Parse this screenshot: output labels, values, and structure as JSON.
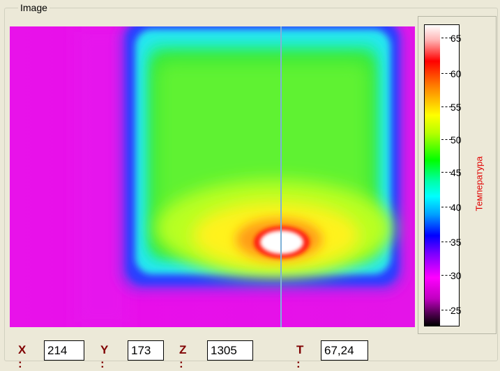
{
  "group": {
    "title": "Image"
  },
  "image": {
    "name": "thermal-image",
    "cursor_column_color": "#7FB2D8"
  },
  "colorbar": {
    "ticks": [
      "65",
      "60",
      "55",
      "50",
      "45",
      "40",
      "35",
      "30",
      "25"
    ],
    "axis_label": "Температура",
    "axis_label_color": "#E00000"
  },
  "readouts": {
    "x_label": "X :",
    "x_value": "214",
    "y_label": "Y :",
    "y_value": "173",
    "z_label": "Z :",
    "z_value": "1305",
    "t_label": "T :",
    "t_value": "67,24"
  },
  "colors": {
    "label": "#800000",
    "background": "#ECE9D8"
  }
}
